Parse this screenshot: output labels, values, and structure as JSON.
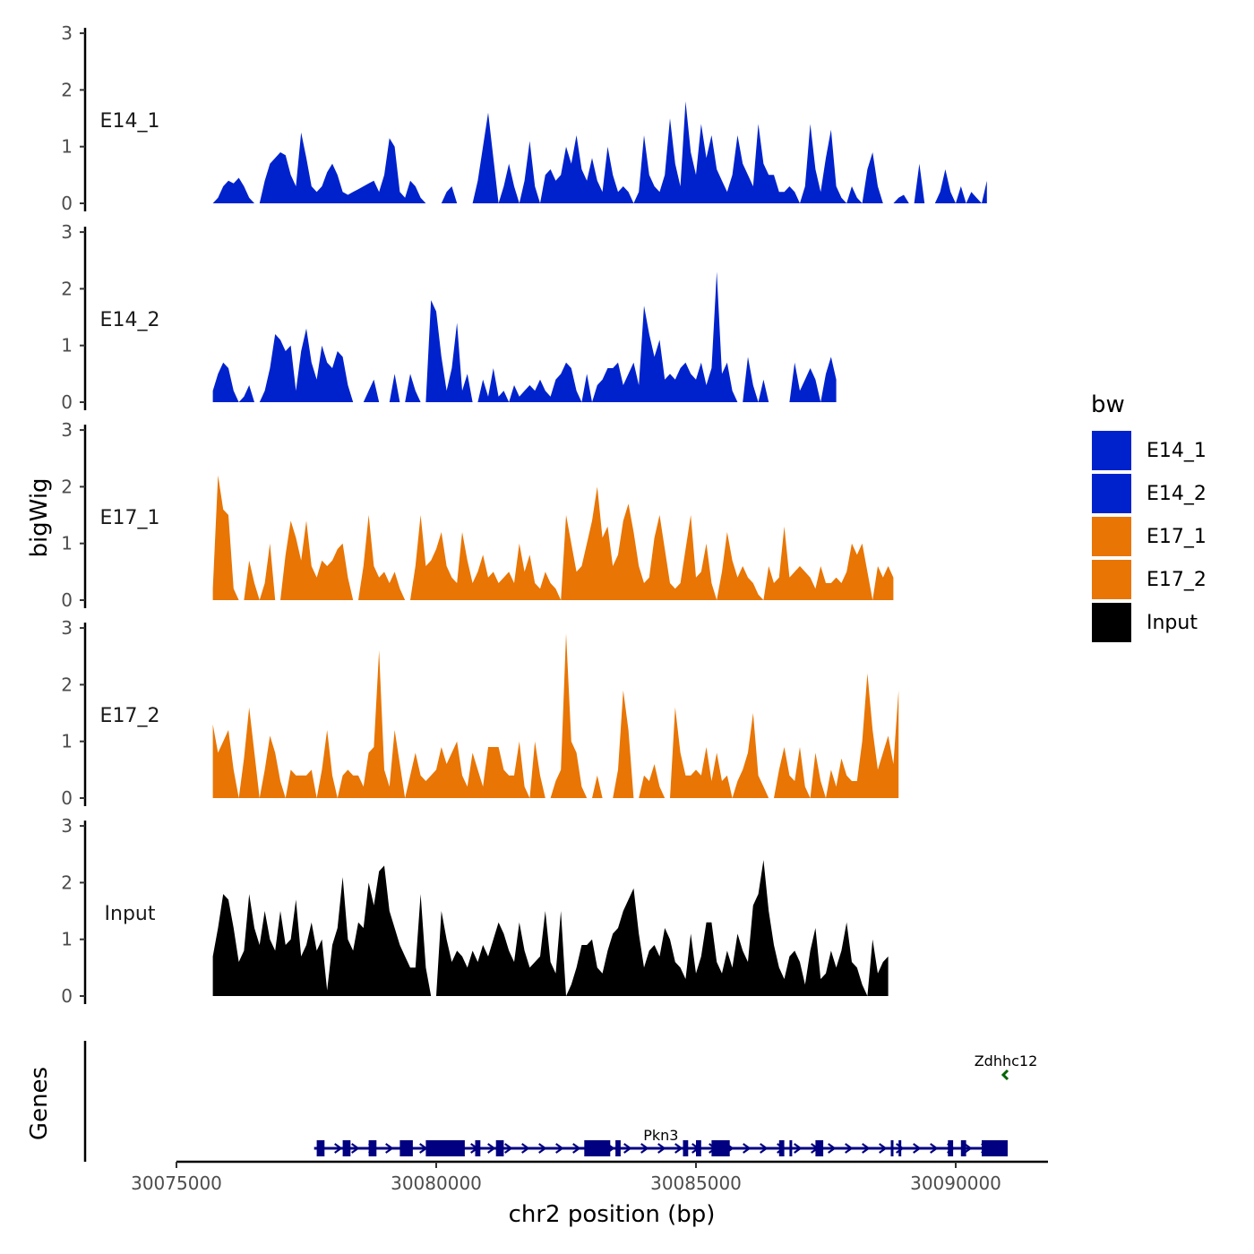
{
  "chart_data": {
    "type": "area",
    "chromosome": "chr2",
    "xlabel": "chr2 position (bp)",
    "ylabel": "bigWig",
    "genes_label": "Genes",
    "xlim": [
      30075000,
      30091800
    ],
    "x_ticks": [
      30075000,
      30080000,
      30085000,
      30090000
    ],
    "x_tick_labels": [
      "30075000",
      "30080000",
      "30085000",
      "30090000"
    ],
    "ylim": [
      0,
      3
    ],
    "y_ticks": [
      0,
      1,
      2,
      3
    ],
    "y_tick_labels": [
      "0",
      "1",
      "2",
      "3"
    ],
    "bin_start": 30075700,
    "bin_size": 100,
    "legend": {
      "title": "bw",
      "entries": [
        {
          "label": "E14_1",
          "color": "#0022cc"
        },
        {
          "label": "E14_2",
          "color": "#0022cc"
        },
        {
          "label": "E17_1",
          "color": "#e87504"
        },
        {
          "label": "E17_2",
          "color": "#e87504"
        },
        {
          "label": "Input",
          "color": "#000000"
        }
      ]
    },
    "series": [
      {
        "name": "E14_1",
        "color": "#0022cc",
        "values": [
          0.0,
          0.1,
          0.3,
          0.4,
          0.35,
          0.45,
          0.3,
          0.1,
          0.0,
          0.0,
          0.4,
          0.7,
          0.8,
          0.9,
          0.85,
          0.5,
          0.3,
          1.25,
          0.8,
          0.3,
          0.2,
          0.3,
          0.55,
          0.7,
          0.5,
          0.2,
          0.15,
          0.2,
          0.25,
          0.3,
          0.35,
          0.4,
          0.2,
          0.5,
          1.15,
          1.0,
          0.2,
          0.1,
          0.4,
          0.3,
          0.1,
          0.0,
          0.0,
          0.0,
          0.0,
          0.2,
          0.3,
          0.0,
          0.0,
          0.0,
          0.0,
          0.4,
          1.0,
          1.6,
          0.8,
          0.0,
          0.3,
          0.7,
          0.3,
          0.0,
          0.4,
          1.1,
          0.3,
          0.0,
          0.5,
          0.6,
          0.4,
          0.5,
          1.0,
          0.7,
          1.2,
          0.6,
          0.4,
          0.8,
          0.4,
          0.2,
          1.0,
          0.5,
          0.2,
          0.3,
          0.2,
          0.0,
          0.2,
          1.2,
          0.5,
          0.3,
          0.2,
          0.5,
          1.5,
          0.7,
          0.3,
          1.8,
          0.9,
          0.5,
          1.4,
          0.8,
          1.2,
          0.6,
          0.4,
          0.2,
          0.5,
          1.2,
          0.7,
          0.5,
          0.3,
          1.4,
          0.7,
          0.5,
          0.5,
          0.2,
          0.2,
          0.3,
          0.2,
          0.0,
          0.3,
          1.4,
          0.6,
          0.2,
          0.8,
          1.3,
          0.3,
          0.1,
          0.0,
          0.3,
          0.1,
          0.0,
          0.6,
          0.9,
          0.3,
          0.0,
          0.0,
          0.0,
          0.1,
          0.15,
          0.0,
          0.0,
          0.7,
          0.0,
          0.0,
          0.0,
          0.2,
          0.6,
          0.2,
          0.0,
          0.3,
          0.0,
          0.2,
          0.1,
          0.0,
          0.4
        ]
      },
      {
        "name": "E14_2",
        "color": "#0022cc",
        "values": [
          0.2,
          0.5,
          0.7,
          0.6,
          0.2,
          0.0,
          0.1,
          0.3,
          0.0,
          0.0,
          0.2,
          0.6,
          1.2,
          1.1,
          0.9,
          1.0,
          0.2,
          0.9,
          1.3,
          0.7,
          0.4,
          1.0,
          0.7,
          0.6,
          0.9,
          0.8,
          0.3,
          0.0,
          0.0,
          0.0,
          0.2,
          0.4,
          0.0,
          0.0,
          0.0,
          0.5,
          0.0,
          0.0,
          0.5,
          0.2,
          0.0,
          0.0,
          1.8,
          1.6,
          0.8,
          0.2,
          0.6,
          1.4,
          0.2,
          0.5,
          0.0,
          0.0,
          0.4,
          0.1,
          0.6,
          0.1,
          0.2,
          0.0,
          0.3,
          0.1,
          0.2,
          0.3,
          0.2,
          0.4,
          0.2,
          0.1,
          0.4,
          0.5,
          0.7,
          0.6,
          0.2,
          0.0,
          0.5,
          0.0,
          0.3,
          0.4,
          0.6,
          0.6,
          0.7,
          0.3,
          0.5,
          0.7,
          0.3,
          1.7,
          1.2,
          0.8,
          1.1,
          0.4,
          0.5,
          0.4,
          0.6,
          0.7,
          0.5,
          0.4,
          0.7,
          0.3,
          0.6,
          2.3,
          0.5,
          0.7,
          0.2,
          0.0,
          0.0,
          0.8,
          0.3,
          0.0,
          0.4,
          0.0,
          0.0,
          0.0,
          0.0,
          0.0,
          0.7,
          0.2,
          0.4,
          0.6,
          0.4,
          0.0,
          0.5,
          0.8,
          0.4
        ]
      },
      {
        "name": "E17_1",
        "color": "#e87504",
        "values": [
          0.2,
          2.2,
          1.6,
          1.5,
          0.2,
          0.0,
          0.0,
          0.7,
          0.3,
          0.0,
          0.3,
          1.0,
          0.0,
          0.0,
          0.8,
          1.4,
          1.1,
          0.7,
          1.4,
          0.6,
          0.4,
          0.7,
          0.6,
          0.7,
          0.9,
          1.0,
          0.4,
          0.0,
          0.0,
          0.6,
          1.5,
          0.6,
          0.4,
          0.5,
          0.3,
          0.5,
          0.2,
          0.0,
          0.0,
          0.6,
          1.5,
          0.6,
          0.7,
          0.9,
          1.2,
          0.6,
          0.4,
          0.3,
          1.2,
          0.7,
          0.3,
          0.5,
          0.8,
          0.4,
          0.5,
          0.3,
          0.4,
          0.5,
          0.3,
          1.0,
          0.5,
          0.8,
          0.3,
          0.2,
          0.5,
          0.3,
          0.2,
          0.0,
          1.5,
          1.0,
          0.5,
          0.6,
          1.0,
          1.4,
          2.0,
          1.1,
          1.3,
          0.6,
          0.8,
          1.4,
          1.7,
          1.2,
          0.6,
          0.3,
          0.4,
          1.1,
          1.5,
          0.9,
          0.3,
          0.2,
          0.3,
          0.9,
          1.5,
          0.4,
          0.5,
          1.0,
          0.3,
          0.0,
          0.5,
          1.2,
          0.7,
          0.4,
          0.6,
          0.4,
          0.3,
          0.1,
          0.0,
          0.6,
          0.3,
          0.4,
          1.3,
          0.4,
          0.5,
          0.6,
          0.5,
          0.4,
          0.2,
          0.6,
          0.3,
          0.3,
          0.4,
          0.3,
          0.5,
          1.0,
          0.8,
          1.0,
          0.5,
          0.0,
          0.6,
          0.4,
          0.6,
          0.4
        ]
      },
      {
        "name": "E17_2",
        "color": "#e87504",
        "values": [
          1.3,
          0.8,
          1.0,
          1.2,
          0.5,
          0.0,
          0.7,
          1.6,
          0.8,
          0.0,
          0.5,
          1.1,
          0.8,
          0.3,
          0.0,
          0.5,
          0.4,
          0.4,
          0.4,
          0.5,
          0.0,
          0.5,
          1.2,
          0.4,
          0.0,
          0.4,
          0.5,
          0.4,
          0.4,
          0.2,
          0.8,
          0.9,
          2.6,
          0.5,
          0.2,
          1.2,
          0.6,
          0.0,
          0.4,
          0.8,
          0.4,
          0.3,
          0.4,
          0.5,
          0.9,
          0.6,
          0.8,
          1.0,
          0.4,
          0.2,
          0.8,
          0.5,
          0.2,
          0.9,
          0.9,
          0.9,
          0.5,
          0.4,
          0.4,
          1.0,
          0.2,
          0.0,
          1.0,
          0.4,
          0.0,
          0.0,
          0.3,
          0.5,
          2.9,
          1.0,
          0.8,
          0.2,
          0.0,
          0.0,
          0.4,
          0.0,
          0.0,
          0.0,
          0.5,
          1.9,
          1.2,
          0.0,
          0.0,
          0.4,
          0.3,
          0.6,
          0.2,
          0.0,
          0.0,
          1.6,
          0.8,
          0.4,
          0.4,
          0.5,
          0.4,
          0.9,
          0.3,
          0.8,
          0.3,
          0.4,
          0.0,
          0.3,
          0.5,
          0.8,
          1.5,
          0.4,
          0.2,
          0.0,
          0.0,
          0.5,
          0.9,
          0.4,
          0.3,
          0.9,
          0.2,
          0.0,
          0.8,
          0.3,
          0.0,
          0.5,
          0.2,
          0.7,
          0.4,
          0.3,
          0.3,
          1.0,
          2.2,
          1.2,
          0.5,
          0.8,
          1.1,
          0.6,
          1.9
        ]
      },
      {
        "name": "Input",
        "color": "#000000",
        "values": [
          0.7,
          1.2,
          1.8,
          1.7,
          1.2,
          0.6,
          0.8,
          1.8,
          1.2,
          0.9,
          1.5,
          1.0,
          0.8,
          1.5,
          0.9,
          1.0,
          1.7,
          0.7,
          0.9,
          1.3,
          0.8,
          1.0,
          0.1,
          0.9,
          1.2,
          2.1,
          1.0,
          0.8,
          1.3,
          1.2,
          2.0,
          1.6,
          2.2,
          2.3,
          1.5,
          1.2,
          0.9,
          0.7,
          0.5,
          0.5,
          1.8,
          0.5,
          0.0,
          0.0,
          1.5,
          1.0,
          0.6,
          0.8,
          0.7,
          0.5,
          0.8,
          0.6,
          0.9,
          0.7,
          1.0,
          1.3,
          1.1,
          0.8,
          0.6,
          1.3,
          0.8,
          0.5,
          0.6,
          0.7,
          1.5,
          0.6,
          0.4,
          1.5,
          0.0,
          0.2,
          0.5,
          0.9,
          0.9,
          1.0,
          0.5,
          0.4,
          0.8,
          1.1,
          1.2,
          1.5,
          1.7,
          1.9,
          1.1,
          0.5,
          0.8,
          0.9,
          0.7,
          1.2,
          1.0,
          0.6,
          0.5,
          0.3,
          1.1,
          0.4,
          0.7,
          1.3,
          1.3,
          0.6,
          0.4,
          0.8,
          0.5,
          1.1,
          0.8,
          0.6,
          1.6,
          1.8,
          2.4,
          1.5,
          0.9,
          0.5,
          0.3,
          0.7,
          0.8,
          0.6,
          0.2,
          0.8,
          1.2,
          0.3,
          0.4,
          0.8,
          0.5,
          0.8,
          1.3,
          0.6,
          0.5,
          0.2,
          0.0,
          1.0,
          0.4,
          0.6,
          0.7
        ]
      }
    ],
    "genes": [
      {
        "name": "Pkn3",
        "start": 30077650,
        "end": 30091000,
        "strand": "+",
        "color": "#000080",
        "exons": [
          [
            30077700,
            30077850
          ],
          [
            30078200,
            30078350
          ],
          [
            30078700,
            30078850
          ],
          [
            30079300,
            30079550
          ],
          [
            30079800,
            30080550
          ],
          [
            30080750,
            30080850
          ],
          [
            30081150,
            30081300
          ],
          [
            30082850,
            30083350
          ],
          [
            30083450,
            30083550
          ],
          [
            30084750,
            30084850
          ],
          [
            30085000,
            30085100
          ],
          [
            30085300,
            30085650
          ],
          [
            30086600,
            30086700
          ],
          [
            30086800,
            30086850
          ],
          [
            30087300,
            30087450
          ],
          [
            30088750,
            30088800
          ],
          [
            30088900,
            30088950
          ],
          [
            30089850,
            30089950
          ],
          [
            30090100,
            30090200
          ],
          [
            30090500,
            30091000
          ]
        ]
      },
      {
        "name": "Zdhhc12",
        "start": 30090940,
        "end": 30091000,
        "strand": "-",
        "color": "#006400",
        "exons": []
      }
    ]
  }
}
